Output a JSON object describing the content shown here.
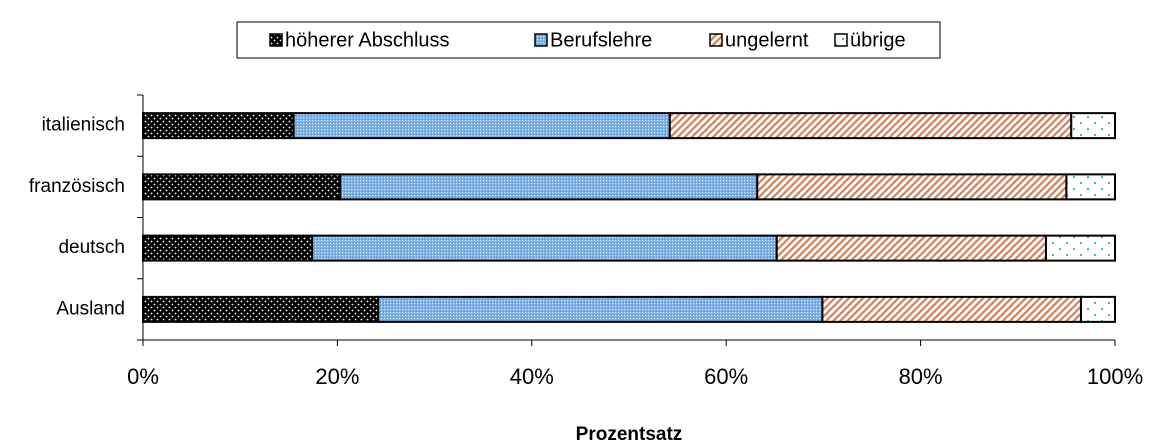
{
  "chart_data": {
    "type": "stacked_bar_horizontal",
    "xlabel": "Prozentsatz",
    "categories": [
      "italienisch",
      "französisch",
      "deutsch",
      "Ausland"
    ],
    "series": [
      {
        "name": "höherer Abschluss",
        "color": "#000000",
        "values": [
          15.5,
          20.3,
          17.4,
          24.2
        ]
      },
      {
        "name": "Berufslehre",
        "color": "#7fb3e6",
        "values": [
          38.7,
          42.9,
          47.8,
          45.7
        ]
      },
      {
        "name": "ungelernt",
        "color": "#d2805a",
        "values": [
          41.3,
          31.8,
          27.7,
          26.6
        ]
      },
      {
        "name": "übrige",
        "color": "#ffffff",
        "values": [
          4.5,
          5.0,
          7.1,
          3.5
        ]
      }
    ],
    "xlim": [
      0,
      100
    ],
    "xticks": [
      {
        "value": 0,
        "label": "0%"
      },
      {
        "value": 20,
        "label": "20%"
      },
      {
        "value": 40,
        "label": "40%"
      },
      {
        "value": 60,
        "label": "60%"
      },
      {
        "value": 80,
        "label": "80%"
      },
      {
        "value": 100,
        "label": "100%"
      }
    ],
    "legend": "top"
  }
}
